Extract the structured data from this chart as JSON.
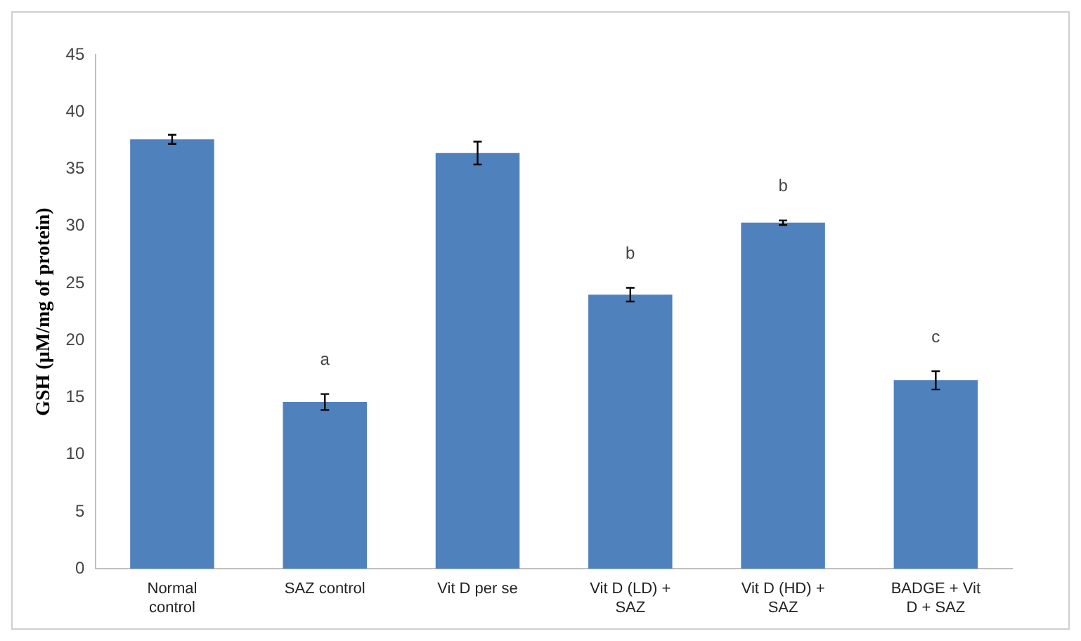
{
  "chart_data": {
    "type": "bar",
    "ylabel": "GSH (µM/mg of protein)",
    "categories": [
      "Normal control",
      "SAZ control",
      "Vit D per se",
      "Vit D (LD) + SAZ",
      "Vit D (HD) + SAZ",
      "BADGE + Vit D + SAZ"
    ],
    "values": [
      37.6,
      14.6,
      36.4,
      24.0,
      30.3,
      16.5
    ],
    "errors": [
      0.4,
      0.7,
      1.0,
      0.6,
      0.2,
      0.8
    ],
    "color": "#4f81bd",
    "value_labels": [
      null,
      "a",
      null,
      "b",
      "b",
      "c"
    ],
    "ylim": [
      0,
      45
    ],
    "yticks": [
      0,
      5,
      10,
      15,
      20,
      25,
      30,
      35,
      40,
      45
    ],
    "grid": false,
    "legend": false
  }
}
